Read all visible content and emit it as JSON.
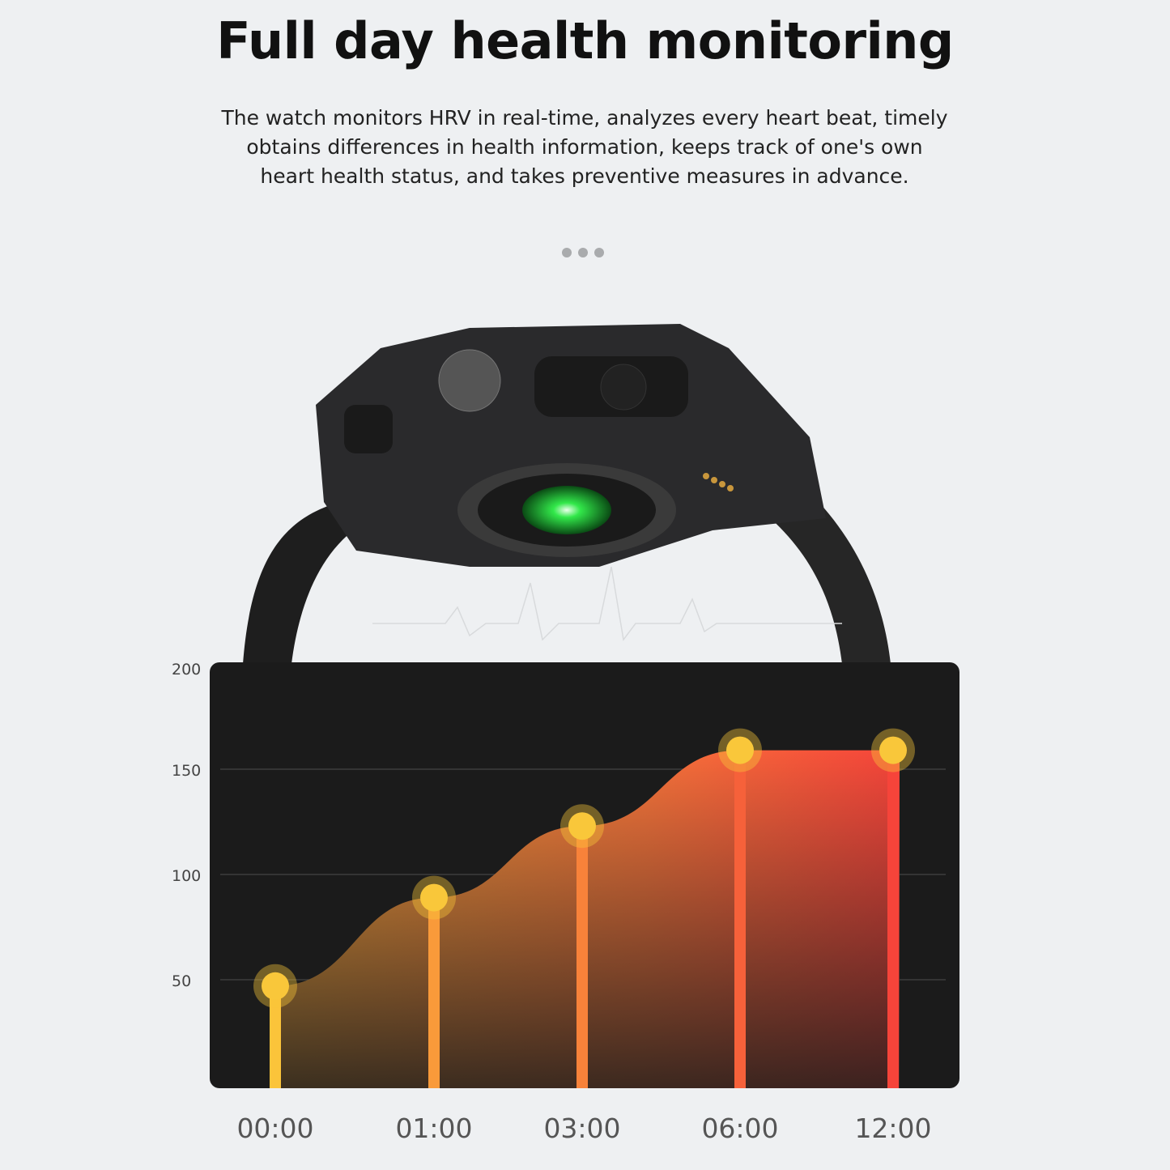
{
  "header": {
    "title": "Full day health monitoring",
    "description_lines": [
      "The watch monitors HRV in real-time, analyzes every heart beat, timely",
      "obtains differences in health information, keeps track of one's own",
      "heart health status, and takes preventive measures in advance."
    ]
  },
  "carousel": {
    "dot_count": 3,
    "dot_color": "#a9abad"
  },
  "product_image": {
    "subject": "smartwatch-back-with-green-heart-rate-sensor"
  },
  "colors": {
    "panel": "#1b1b1b",
    "marker": "#f9c73a",
    "gradient_start": "#f9c73a",
    "gradient_end": "#f6443a"
  },
  "chart_data": {
    "type": "area",
    "categories": [
      "00:00",
      "01:00",
      "03:00",
      "06:00",
      "12:00"
    ],
    "values": [
      47,
      89,
      123,
      159,
      159
    ],
    "yticks": [
      200,
      150,
      100,
      50
    ],
    "ylim": [
      0,
      200
    ],
    "grid": true,
    "xlabel": "",
    "ylabel": "",
    "title": ""
  }
}
